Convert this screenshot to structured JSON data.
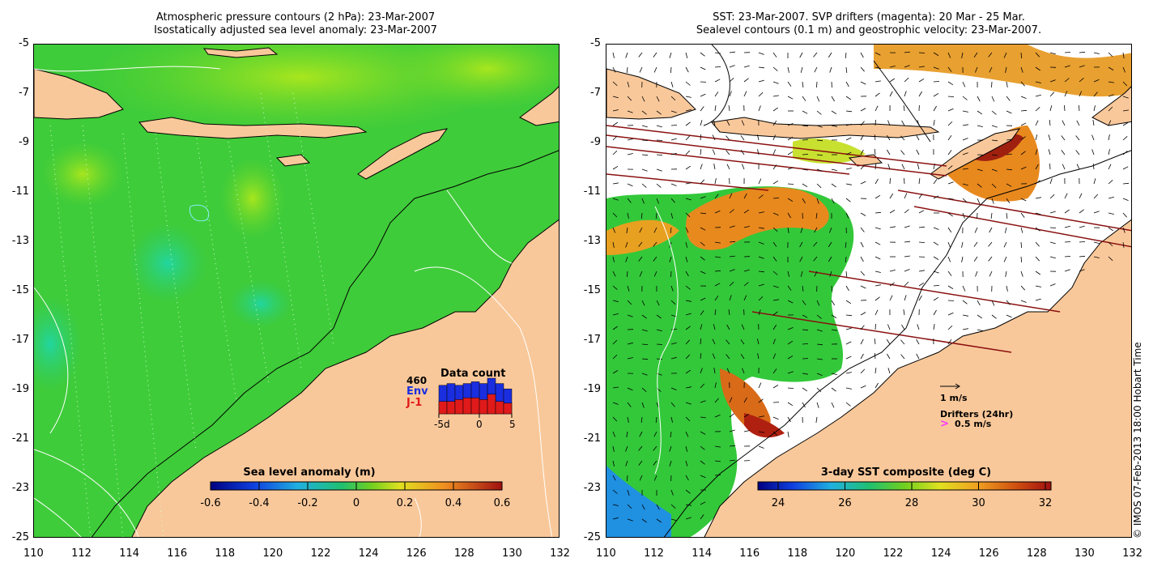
{
  "left_panel": {
    "title_line1": "Atmospheric pressure contours (2 hPa): 23-Mar-2007",
    "title_line2": "Isostatically adjusted sea level anomaly: 23-Mar-2007",
    "colorbar_title": "Sea level anomaly (m)",
    "colorbar_ticks": [
      "-0.6",
      "-0.4",
      "-0.2",
      "0",
      "0.2",
      "0.4",
      "0.6"
    ],
    "data_count": {
      "title": "Data count",
      "max_label": "460",
      "env_label": "Env",
      "j1_label": "J-1",
      "x_labels": [
        "-5d",
        "0",
        "5"
      ],
      "env_color": "#1a2ee0",
      "j1_color": "#e01a1a",
      "env_values": [
        0.8,
        0.85,
        0.8,
        0.85,
        0.9,
        0.85,
        1.0,
        0.85,
        0.7
      ],
      "j1_values": [
        0.35,
        0.35,
        0.4,
        0.45,
        0.45,
        0.4,
        0.55,
        0.35,
        0.3
      ]
    }
  },
  "right_panel": {
    "title_line1": "SST: 23-Mar-2007. SVP drifters (magenta): 20 Mar - 25 Mar.",
    "title_line2": "Sealevel contours (0.1 m) and geostrophic velocity: 23-Mar-2007.",
    "colorbar_title": "3-day SST composite (deg C)",
    "colorbar_ticks": [
      "24",
      "26",
      "28",
      "30",
      "32"
    ],
    "velocity_scale_label": "1 m/s",
    "drifters_label": "Drifters (24hr)",
    "drifters_speed_label": "0.5 m/s",
    "drifter_marker": ">",
    "drifter_color": "#ff33ff"
  },
  "axes": {
    "x_ticks": [
      "110",
      "112",
      "114",
      "116",
      "118",
      "120",
      "122",
      "124",
      "126",
      "128",
      "130",
      "132"
    ],
    "y_ticks": [
      "-5",
      "-7",
      "-9",
      "-11",
      "-13",
      "-15",
      "-17",
      "-19",
      "-21",
      "-23",
      "-25"
    ]
  },
  "credit": "© IMOS 07-Feb-2013 18:00 Hobart Time",
  "colors": {
    "land": "#f9c89a",
    "ocean_green": "#33cc33",
    "cloud_white": "#ffffff",
    "sst_orange": "#e8891e",
    "sst_red": "#b02010"
  }
}
